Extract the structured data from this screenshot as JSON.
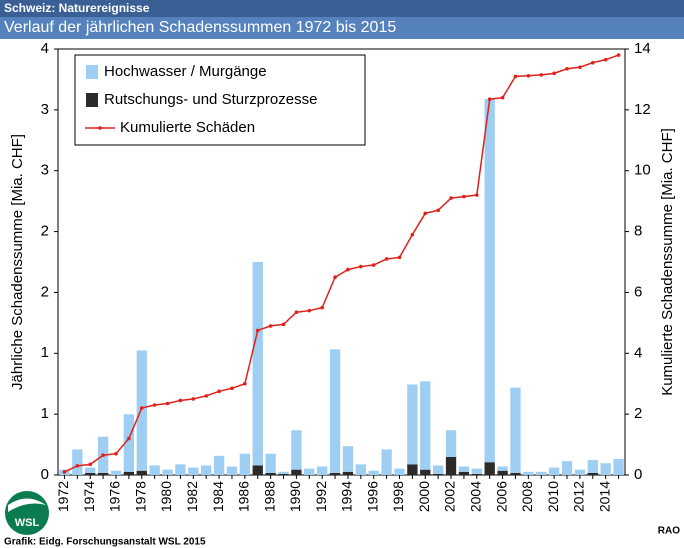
{
  "chart_data": {
    "type": "bar",
    "header": "Schweiz: Naturereignisse",
    "title": "Verlauf der jährlichen Schadenssummen 1972 bis 2015",
    "ylabel": "Jährliche Schadenssumme [Mia. CHF]",
    "y2label": "Kumulierte Schadenssumme [Mia. CHF]",
    "source": "Grafik: Eidg. Forschungsanstalt WSL 2015",
    "code": "RAO",
    "logo_text": "WSL",
    "categories": [
      "1972",
      null,
      "1974",
      null,
      "1976",
      null,
      "1978",
      null,
      "1980",
      null,
      "1982",
      null,
      "1984",
      null,
      "1986",
      null,
      "1988",
      null,
      "1990",
      null,
      "1992",
      null,
      "1994",
      null,
      "1996",
      null,
      "1998",
      null,
      "2000",
      null,
      "2002",
      null,
      "2004",
      null,
      "2006",
      null,
      "2008",
      null,
      "2010",
      null,
      "2012",
      null,
      "2014",
      null
    ],
    "series": [
      {
        "name": "Hochwasser  / Murgänge",
        "color": "#9fcef3",
        "values": [
          0.05,
          0.24,
          0.05,
          0.34,
          0.04,
          0.54,
          1.13,
          0.09,
          0.05,
          0.1,
          0.07,
          0.09,
          0.18,
          0.08,
          0.2,
          1.91,
          0.18,
          0.02,
          0.37,
          0.06,
          0.08,
          1.16,
          0.24,
          0.1,
          0.04,
          0.24,
          0.06,
          0.75,
          0.83,
          0.08,
          0.25,
          0.05,
          0.05,
          3.41,
          0.04,
          0.8,
          0.03,
          0.03,
          0.07,
          0.13,
          0.05,
          0.12,
          0.11,
          0.15
        ]
      },
      {
        "name": "Rutschungs- und Sturzprozesse",
        "color": "#2b2b2b",
        "values": [
          0,
          0,
          0.02,
          0.02,
          0,
          0.03,
          0.04,
          0,
          0,
          0,
          0,
          0,
          0,
          0,
          0,
          0.09,
          0.02,
          0.01,
          0.05,
          0,
          0,
          0.02,
          0.03,
          0,
          0,
          0,
          0,
          0.1,
          0.05,
          0.01,
          0.17,
          0.03,
          0.01,
          0.12,
          0.04,
          0.02,
          0,
          0,
          0,
          0,
          0,
          0.02,
          0,
          0
        ]
      },
      {
        "name": "Kumulierte Schäden",
        "color": "#e0201b",
        "axis": "y2",
        "values": [
          0.1,
          0.3,
          0.35,
          0.65,
          0.7,
          1.2,
          2.2,
          2.3,
          2.35,
          2.45,
          2.5,
          2.6,
          2.75,
          2.85,
          3.0,
          4.75,
          4.9,
          4.95,
          5.35,
          5.4,
          5.5,
          6.5,
          6.75,
          6.85,
          6.9,
          7.1,
          7.15,
          7.9,
          8.6,
          8.7,
          9.1,
          9.15,
          9.2,
          12.35,
          12.4,
          13.1,
          13.12,
          13.15,
          13.2,
          13.35,
          13.4,
          13.55,
          13.65,
          13.8
        ]
      }
    ],
    "ylim": [
      0,
      4
    ],
    "yticks": [
      0,
      {
        "value": 0.5714,
        "label": "1"
      },
      {
        "value": 1.1429,
        "label": "1"
      },
      {
        "value": 1.7143,
        "label": "2"
      },
      {
        "value": 2.2857,
        "label": "2"
      },
      {
        "value": 2.8571,
        "label": "3"
      },
      {
        "value": 3.4286,
        "label": "3"
      },
      4
    ],
    "y2lim": [
      0,
      14
    ],
    "y2ticks": [
      0,
      2,
      4,
      6,
      8,
      10,
      12,
      14
    ],
    "legend": "upper left"
  }
}
